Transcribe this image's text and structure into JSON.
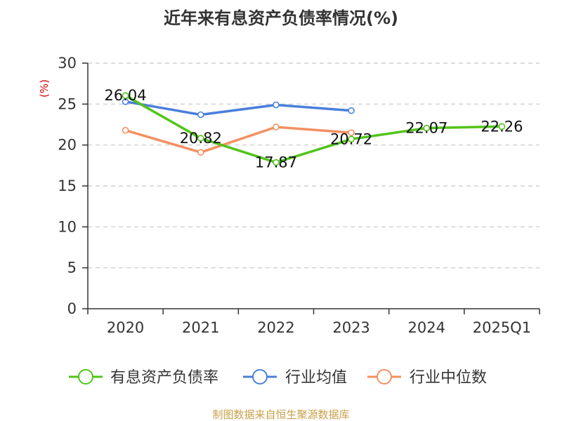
{
  "colors": {
    "debt_ratio": "#52c41a",
    "industry_avg": "#4a7fdc",
    "industry_median": "#f39061",
    "unit": "#e00000",
    "source": "#c8a04b"
  },
  "chart_data": {
    "type": "line",
    "title": "近年来有息资产负债率情况(%)",
    "unit_label": "(%)",
    "categories": [
      "2020",
      "2021",
      "2022",
      "2023",
      "2024",
      "2025Q1"
    ],
    "ylim": [
      0,
      30
    ],
    "yticks": [
      0,
      5,
      10,
      15,
      20,
      25,
      30
    ],
    "grid": true,
    "legend_position": "bottom",
    "series": [
      {
        "name": "有息资产负债率",
        "color_key": "debt_ratio",
        "values": [
          26.04,
          20.82,
          17.87,
          20.72,
          22.07,
          22.26
        ],
        "labels": [
          "26.04",
          "20.82",
          "17.87",
          "20.72",
          "22.07",
          "22.26"
        ]
      },
      {
        "name": "行业均值",
        "color_key": "industry_avg",
        "values": [
          25.3,
          23.7,
          24.9,
          24.2,
          null,
          null
        ]
      },
      {
        "name": "行业中位数",
        "color_key": "industry_median",
        "values": [
          21.8,
          19.1,
          22.2,
          21.5,
          null,
          null
        ]
      }
    ]
  },
  "source_text": "制图数据来自恒生聚源数据库"
}
